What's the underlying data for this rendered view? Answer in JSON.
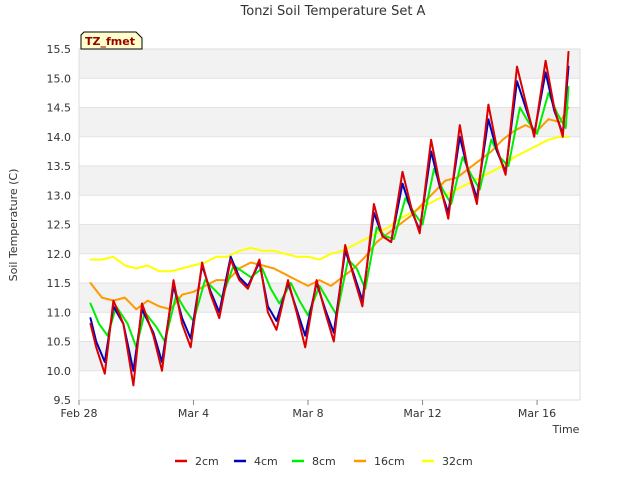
{
  "chart_data": {
    "type": "line",
    "title": "Tonzi Soil Temperature Set A",
    "xlabel": "Time",
    "ylabel": "Soil Temperature (C)",
    "site_badge": "TZ_fmet",
    "ylim": [
      9.5,
      15.5
    ],
    "xlim": [
      0,
      17.5
    ],
    "x_unit": "days since Feb 28",
    "x_ticks": [
      {
        "x": 0,
        "label": "Feb 28"
      },
      {
        "x": 4,
        "label": "Mar 4"
      },
      {
        "x": 8,
        "label": "Mar 8"
      },
      {
        "x": 12,
        "label": "Mar 12"
      },
      {
        "x": 16,
        "label": "Mar 16"
      }
    ],
    "y_ticks": [
      {
        "v": 9.5,
        "label": "9.5"
      },
      {
        "v": 10.0,
        "label": "10.0"
      },
      {
        "v": 10.5,
        "label": "10.5"
      },
      {
        "v": 11.0,
        "label": "11.0"
      },
      {
        "v": 11.5,
        "label": "11.5"
      },
      {
        "v": 12.0,
        "label": "12.0"
      },
      {
        "v": 12.5,
        "label": "12.5"
      },
      {
        "v": 13.0,
        "label": "13.0"
      },
      {
        "v": 13.5,
        "label": "13.5"
      },
      {
        "v": 14.0,
        "label": "14.0"
      },
      {
        "v": 14.5,
        "label": "14.5"
      },
      {
        "v": 15.0,
        "label": "15.0"
      },
      {
        "v": 15.5,
        "label": "15.5"
      }
    ],
    "grid": true,
    "legend_position": "bottom",
    "series": [
      {
        "name": "2cm",
        "color": "#dd0000",
        "x": [
          0.4,
          0.6,
          0.9,
          1.2,
          1.55,
          1.9,
          2.2,
          2.6,
          2.9,
          3.3,
          3.6,
          3.9,
          4.3,
          4.6,
          4.9,
          5.3,
          5.6,
          5.9,
          6.3,
          6.6,
          6.9,
          7.3,
          7.6,
          7.9,
          8.3,
          8.6,
          8.9,
          9.3,
          9.6,
          9.9,
          10.3,
          10.6,
          10.9,
          11.3,
          11.6,
          11.9,
          12.3,
          12.6,
          12.9,
          13.3,
          13.6,
          13.9,
          14.3,
          14.6,
          14.9,
          15.3,
          15.6,
          15.9,
          16.3,
          16.6,
          16.9,
          17.1
        ],
        "y": [
          10.8,
          10.4,
          9.95,
          11.2,
          10.8,
          9.75,
          11.15,
          10.6,
          10.0,
          11.55,
          10.8,
          10.4,
          11.85,
          11.3,
          10.9,
          11.9,
          11.55,
          11.4,
          11.9,
          11.0,
          10.7,
          11.55,
          11.0,
          10.4,
          11.55,
          11.0,
          10.5,
          12.15,
          11.6,
          11.1,
          12.85,
          12.3,
          12.2,
          13.4,
          12.8,
          12.35,
          13.95,
          13.2,
          12.6,
          14.2,
          13.4,
          12.85,
          14.55,
          13.8,
          13.35,
          15.2,
          14.6,
          14.0,
          15.3,
          14.5,
          14.0,
          15.45
        ]
      },
      {
        "name": "4cm",
        "color": "#0000bb",
        "x": [
          0.4,
          0.6,
          0.9,
          1.2,
          1.55,
          1.9,
          2.2,
          2.6,
          2.9,
          3.3,
          3.6,
          3.9,
          4.3,
          4.6,
          4.9,
          5.3,
          5.6,
          5.9,
          6.3,
          6.6,
          6.9,
          7.3,
          7.6,
          7.9,
          8.3,
          8.6,
          8.9,
          9.3,
          9.6,
          9.9,
          10.3,
          10.6,
          10.9,
          11.3,
          11.6,
          11.9,
          12.3,
          12.6,
          12.9,
          13.3,
          13.6,
          13.9,
          14.3,
          14.6,
          14.9,
          15.3,
          15.6,
          15.9,
          16.3,
          16.6,
          16.9,
          17.1
        ],
        "y": [
          10.9,
          10.5,
          10.15,
          11.1,
          10.8,
          10.0,
          11.05,
          10.65,
          10.15,
          11.45,
          10.9,
          10.55,
          11.8,
          11.35,
          11.0,
          11.95,
          11.6,
          11.45,
          11.85,
          11.1,
          10.85,
          11.5,
          11.05,
          10.6,
          11.5,
          11.05,
          10.65,
          12.05,
          11.65,
          11.2,
          12.7,
          12.3,
          12.2,
          13.2,
          12.75,
          12.4,
          13.75,
          13.15,
          12.7,
          14.0,
          13.4,
          12.95,
          14.3,
          13.75,
          13.4,
          14.95,
          14.5,
          14.05,
          15.1,
          14.45,
          14.05,
          15.2
        ]
      },
      {
        "name": "8cm",
        "color": "#00ee00",
        "x": [
          0.4,
          0.7,
          1.0,
          1.3,
          1.7,
          2.0,
          2.3,
          2.7,
          3.0,
          3.4,
          3.7,
          4.0,
          4.4,
          4.7,
          5.0,
          5.4,
          5.7,
          6.0,
          6.4,
          6.7,
          7.0,
          7.4,
          7.7,
          8.0,
          8.4,
          8.7,
          9.0,
          9.4,
          9.7,
          10.0,
          10.4,
          10.7,
          11.0,
          11.4,
          11.7,
          12.0,
          12.4,
          12.7,
          13.0,
          13.4,
          13.7,
          14.0,
          14.4,
          14.7,
          15.0,
          15.4,
          15.7,
          16.0,
          16.4,
          16.7,
          17.0,
          17.1
        ],
        "y": [
          11.15,
          10.8,
          10.6,
          11.1,
          10.8,
          10.4,
          11.0,
          10.75,
          10.5,
          11.3,
          11.05,
          10.85,
          11.55,
          11.4,
          11.25,
          11.8,
          11.7,
          11.6,
          11.75,
          11.4,
          11.15,
          11.5,
          11.2,
          10.95,
          11.45,
          11.2,
          10.95,
          11.9,
          11.75,
          11.4,
          12.45,
          12.3,
          12.25,
          12.95,
          12.7,
          12.5,
          13.45,
          13.1,
          12.85,
          13.65,
          13.35,
          13.1,
          13.95,
          13.65,
          13.5,
          14.5,
          14.25,
          14.05,
          14.75,
          14.4,
          14.15,
          14.85
        ]
      },
      {
        "name": "16cm",
        "color": "#ff9900",
        "x": [
          0.4,
          0.8,
          1.2,
          1.6,
          2.0,
          2.4,
          2.8,
          3.2,
          3.6,
          4.0,
          4.4,
          4.8,
          5.2,
          5.6,
          6.0,
          6.4,
          6.8,
          7.2,
          7.6,
          8.0,
          8.4,
          8.8,
          9.2,
          9.6,
          10.0,
          10.4,
          10.8,
          11.2,
          11.6,
          12.0,
          12.4,
          12.8,
          13.2,
          13.6,
          14.0,
          14.4,
          14.8,
          15.2,
          15.6,
          16.0,
          16.4,
          16.8,
          17.1
        ],
        "y": [
          11.5,
          11.25,
          11.2,
          11.25,
          11.05,
          11.2,
          11.1,
          11.05,
          11.3,
          11.35,
          11.45,
          11.55,
          11.55,
          11.75,
          11.85,
          11.8,
          11.75,
          11.65,
          11.55,
          11.45,
          11.55,
          11.45,
          11.6,
          11.75,
          11.95,
          12.2,
          12.35,
          12.5,
          12.65,
          12.85,
          13.05,
          13.25,
          13.3,
          13.45,
          13.6,
          13.75,
          13.95,
          14.1,
          14.2,
          14.1,
          14.3,
          14.25,
          14.5
        ]
      },
      {
        "name": "32cm",
        "color": "#ffff00",
        "x": [
          0.4,
          0.8,
          1.2,
          1.6,
          2.0,
          2.4,
          2.8,
          3.2,
          3.6,
          4.0,
          4.4,
          4.8,
          5.2,
          5.6,
          6.0,
          6.4,
          6.8,
          7.2,
          7.6,
          8.0,
          8.4,
          8.8,
          9.2,
          9.6,
          10.0,
          10.4,
          10.8,
          11.2,
          11.6,
          12.0,
          12.4,
          12.8,
          13.2,
          13.6,
          14.0,
          14.4,
          14.8,
          15.2,
          15.6,
          16.0,
          16.4,
          16.8,
          17.1
        ],
        "y": [
          11.9,
          11.9,
          11.95,
          11.8,
          11.75,
          11.8,
          11.7,
          11.7,
          11.75,
          11.8,
          11.85,
          11.95,
          11.95,
          12.05,
          12.1,
          12.05,
          12.05,
          12.0,
          11.95,
          11.95,
          11.9,
          12.0,
          12.05,
          12.15,
          12.25,
          12.35,
          12.45,
          12.6,
          12.7,
          12.8,
          12.9,
          13.0,
          13.1,
          13.2,
          13.3,
          13.4,
          13.5,
          13.65,
          13.75,
          13.85,
          13.95,
          14.0,
          14.0
        ]
      }
    ]
  }
}
